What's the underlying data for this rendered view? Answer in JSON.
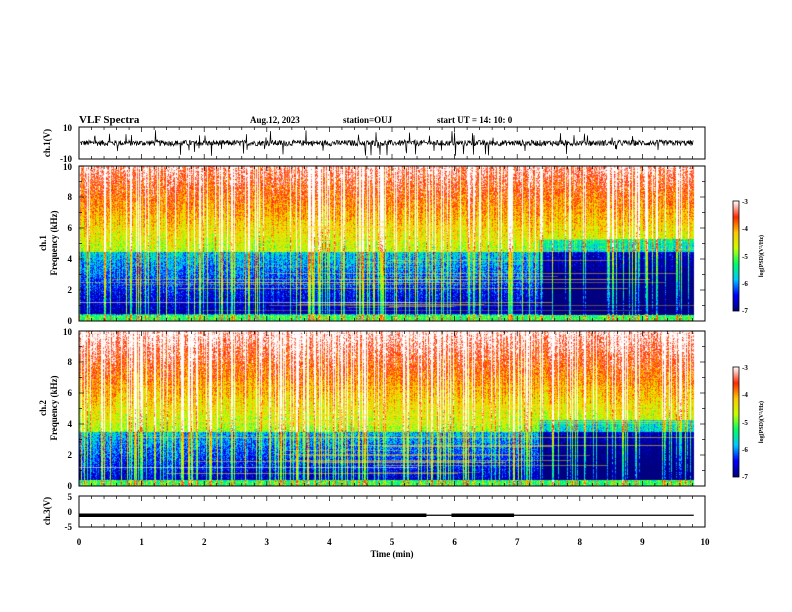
{
  "header": {
    "title": "VLF Spectra",
    "date": "Aug.12, 2023",
    "station": "station=OUJ",
    "start": "start  UT =  14: 10: 0"
  },
  "chart_data": [
    {
      "type": "line",
      "panel": "ch1-waveform",
      "ylabel": "ch.1(V)",
      "ylim": [
        -10,
        10
      ],
      "yticks": [
        "10",
        "-10"
      ],
      "xlim": [
        0,
        10
      ],
      "x_end_data": 9.82,
      "baseline": 0,
      "noise_amplitude": 3,
      "bursts_up_to": 8
    },
    {
      "type": "heatmap",
      "panel": "ch1-spectrogram",
      "ylabel": "ch.1\nFrequency  (kHz)",
      "ylim": [
        0,
        10
      ],
      "yticks": [
        "0",
        "2",
        "4",
        "6",
        "8",
        "10"
      ],
      "xlim": [
        0,
        10
      ],
      "x_end_data": 9.82,
      "colorscale": [
        "#000080",
        "#0000ff",
        "#00c8ff",
        "#00ff64",
        "#c8ff00",
        "#ffc800",
        "#ff2800",
        "#ffffff"
      ],
      "cbar_range": [
        -7,
        -3
      ],
      "cbar_ticks": [
        "-3",
        "-4",
        "-5",
        "-6",
        "-7"
      ],
      "cbar_label": "log(PSD)(V²/Hz)",
      "quiet_band_khz": [
        0.5,
        4.5
      ],
      "quiet_strong_after_min": 7.35
    },
    {
      "type": "heatmap",
      "panel": "ch2-spectrogram",
      "ylabel": "ch.2\nFrequency  (kHz)",
      "ylim": [
        0,
        10
      ],
      "yticks": [
        "0",
        "2",
        "4",
        "6",
        "8",
        "10"
      ],
      "xlim": [
        0,
        10
      ],
      "x_end_data": 9.82,
      "colorscale": [
        "#000080",
        "#0000ff",
        "#00c8ff",
        "#00ff64",
        "#c8ff00",
        "#ffc800",
        "#ff2800",
        "#ffffff"
      ],
      "cbar_range": [
        -7,
        -3
      ],
      "cbar_ticks": [
        "-3",
        "-4",
        "-5",
        "-6",
        "-7"
      ],
      "cbar_label": "log(PSD)(V²/Hz)",
      "quiet_band_khz": [
        0.3,
        3.5
      ],
      "quiet_strong_after_min": 7.35
    },
    {
      "type": "line",
      "panel": "ch3-waveform",
      "ylabel": "ch.3(V)",
      "ylim": [
        -5,
        5
      ],
      "yticks": [
        "5",
        "0",
        "-5"
      ],
      "xlim": [
        0,
        10
      ],
      "xlabel": "Time  (min)",
      "xticks": [
        "0",
        "1",
        "2",
        "3",
        "4",
        "5",
        "6",
        "7",
        "8",
        "9",
        "10"
      ],
      "level": -1.2,
      "thick_segments_min": [
        [
          0,
          5.55
        ],
        [
          5.95,
          6.95
        ]
      ],
      "x_end_data": 9.82
    }
  ]
}
